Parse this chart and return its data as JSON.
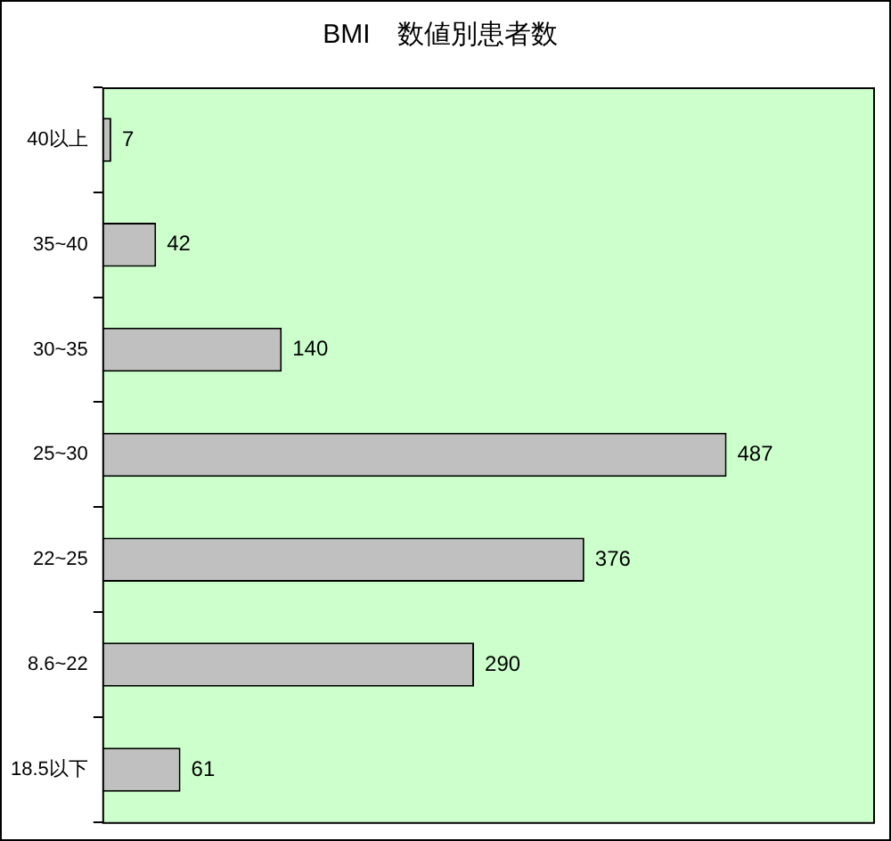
{
  "chart_data": {
    "type": "bar",
    "title": "BMI　数値別患者数",
    "orientation": "horizontal",
    "categories": [
      "40以上",
      "35~40",
      "30~35",
      "25~30",
      "22~25",
      "8.6~22",
      "18.5以下"
    ],
    "series": [
      {
        "color": "#c0c0c0",
        "values": [
          7,
          42,
          140,
          487,
          376,
          290,
          61
        ]
      }
    ],
    "data_labels": true,
    "grid": false,
    "legend": false
  }
}
